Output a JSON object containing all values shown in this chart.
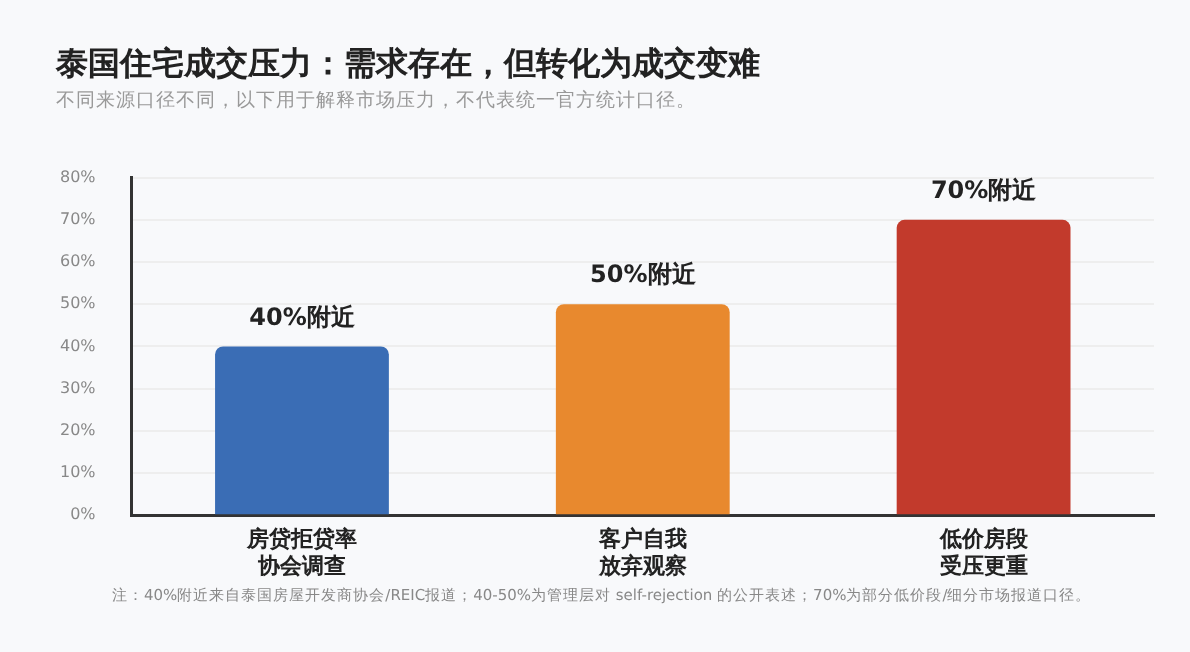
{
  "chart_data": {
    "type": "bar",
    "title": "泰国住宅成交压力：需求存在，但转化为成交变难",
    "subtitle": "不同来源口径不同，以下用于解释市场压力，不代表统一官方统计口径。",
    "categories": [
      "房贷拒贷率协会调查",
      "客户自我放弃观察",
      "低价房段受压更重"
    ],
    "values": [
      40,
      50,
      70
    ],
    "colors": [
      "#3a6db5",
      "#e8892e",
      "#c23a2c"
    ],
    "value_labels": [
      "40%附近",
      "50%附近",
      "70%附近"
    ],
    "ylim": [
      0,
      80
    ],
    "yticks": [
      {
        "value": 0,
        "label": "0%"
      },
      {
        "value": 10,
        "label": "10%"
      },
      {
        "value": 20,
        "label": "20%"
      },
      {
        "value": 30,
        "label": "30%"
      },
      {
        "value": 40,
        "label": "40%"
      },
      {
        "value": 50,
        "label": "50%"
      },
      {
        "value": 60,
        "label": "60%"
      },
      {
        "value": 70,
        "label": "70%"
      },
      {
        "value": 80,
        "label": "80%"
      }
    ],
    "grid": "y",
    "legend": false,
    "annotations": [
      "注：40%附近来自泰国房屋开发商协会/REIC报道；40-50%为管理层对 self-rejection 的公开表述；70%为部分低价段/细分市场报道口径。"
    ]
  }
}
